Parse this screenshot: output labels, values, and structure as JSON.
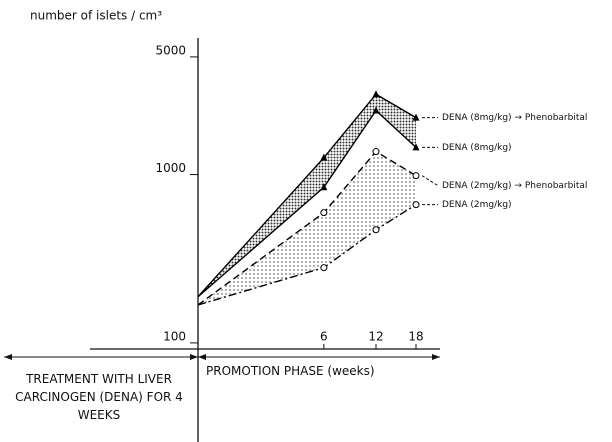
{
  "chart_data": {
    "type": "line",
    "y_label": "number of islets / cm³",
    "x": [
      0,
      6,
      12,
      18
    ],
    "xlim": [
      0,
      18
    ],
    "xticks": [
      6,
      12,
      18
    ],
    "xscale": "sqrt",
    "ylim": [
      92,
      6300
    ],
    "yticks": [
      100,
      1000,
      5000
    ],
    "yscale": "log",
    "series": [
      {
        "name": "DENA (8mg/kg) → Phenobarbital",
        "color": "#000000",
        "dash": "solid",
        "marker": "triangle",
        "values": [
          188,
          1260,
          3000,
          2180
        ]
      },
      {
        "name": "DENA (8mg/kg)",
        "color": "#000000",
        "dash": "solid",
        "marker": "triangle",
        "values": [
          188,
          840,
          2400,
          1450
        ]
      },
      {
        "name": "DENA (2mg/kg) → Phenobarbital",
        "color": "#000000",
        "dash": "dashed",
        "marker": "circle",
        "values": [
          168,
          594,
          1370,
          985
        ]
      },
      {
        "name": "DENA (2mg/kg)",
        "color": "#000000",
        "dash": "dashdot",
        "marker": "circle",
        "values": [
          168,
          280,
          470,
          663
        ]
      }
    ],
    "annotations": [
      "TREATMENT WITH LIVER CARCINOGEN (DENA) FOR 4 WEEKS",
      "PROMOTION PHASE (weeks)"
    ]
  }
}
